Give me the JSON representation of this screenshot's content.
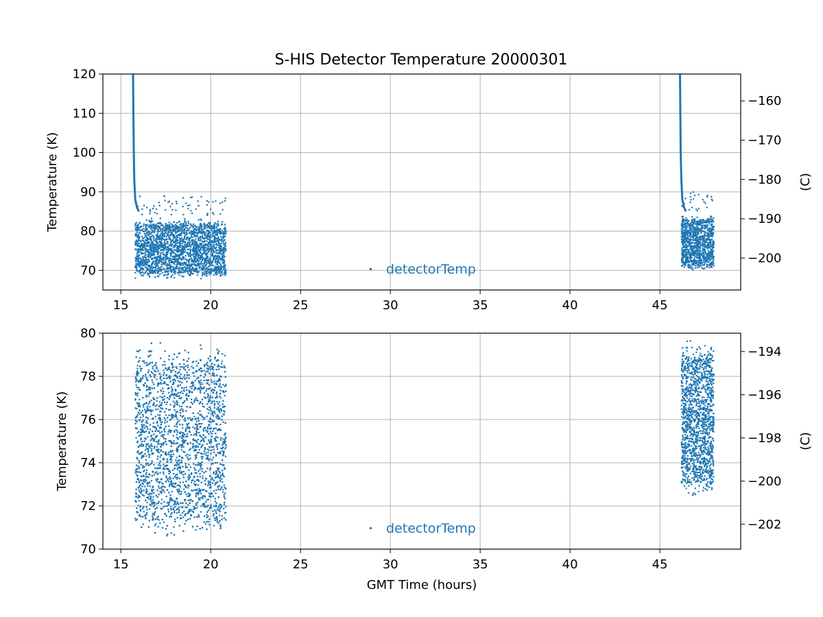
{
  "title": "S-HIS Detector Temperature 20000301",
  "colors": {
    "series": "#1f77b4",
    "grid": "#b0b0b0"
  },
  "chart_data": [
    {
      "type": "scatter",
      "xlabel": "",
      "ylabel": "Temperature (K)",
      "ylabel_right": "(C)",
      "xlim": [
        14,
        49.5
      ],
      "ylim": [
        65,
        120
      ],
      "xticks": [
        15,
        20,
        25,
        30,
        35,
        40,
        45
      ],
      "yticks": [
        70,
        80,
        90,
        100,
        110,
        120
      ],
      "yticks_right": [
        -160,
        -170,
        -180,
        -190,
        -200
      ],
      "grid": true,
      "legend": "lower-center",
      "series": [
        {
          "name": "detectorTemp",
          "segments": [
            {
              "x_start": 15.8,
              "x_end": 20.85,
              "y_center": 75.5,
              "y_spread": 8.5,
              "count": 2500
            },
            {
              "x_start": 46.2,
              "x_end": 48.0,
              "y_center": 77.0,
              "y_spread": 8.0,
              "count": 1100
            }
          ],
          "cooldown_curves": [
            {
              "x": [
                15.68,
                15.7,
                15.72,
                15.75,
                15.8,
                15.9,
                16.0
              ],
              "y": [
                120,
                110,
                100,
                93,
                88,
                86,
                85
              ]
            },
            {
              "x": [
                46.12,
                46.14,
                46.16,
                46.2,
                46.25,
                46.35,
                46.45
              ],
              "y": [
                120,
                110,
                100,
                93,
                88,
                86,
                85
              ]
            }
          ]
        }
      ]
    },
    {
      "type": "scatter",
      "xlabel": "GMT Time (hours)",
      "ylabel": "Temperature (K)",
      "ylabel_right": "(C)",
      "xlim": [
        14,
        49.5
      ],
      "ylim": [
        70,
        80
      ],
      "xticks": [
        15,
        20,
        25,
        30,
        35,
        40,
        45
      ],
      "yticks": [
        70,
        72,
        74,
        76,
        78,
        80
      ],
      "yticks_right": [
        -194,
        -196,
        -198,
        -200,
        -202
      ],
      "grid": true,
      "legend": "lower-center",
      "series": [
        {
          "name": "detectorTemp",
          "segments": [
            {
              "x_start": 15.8,
              "x_end": 20.85,
              "y_center": 75.0,
              "y_spread": 5.0,
              "count": 3500
            },
            {
              "x_start": 46.2,
              "x_end": 48.0,
              "y_center": 76.0,
              "y_spread": 4.0,
              "count": 1500
            }
          ]
        }
      ]
    }
  ]
}
